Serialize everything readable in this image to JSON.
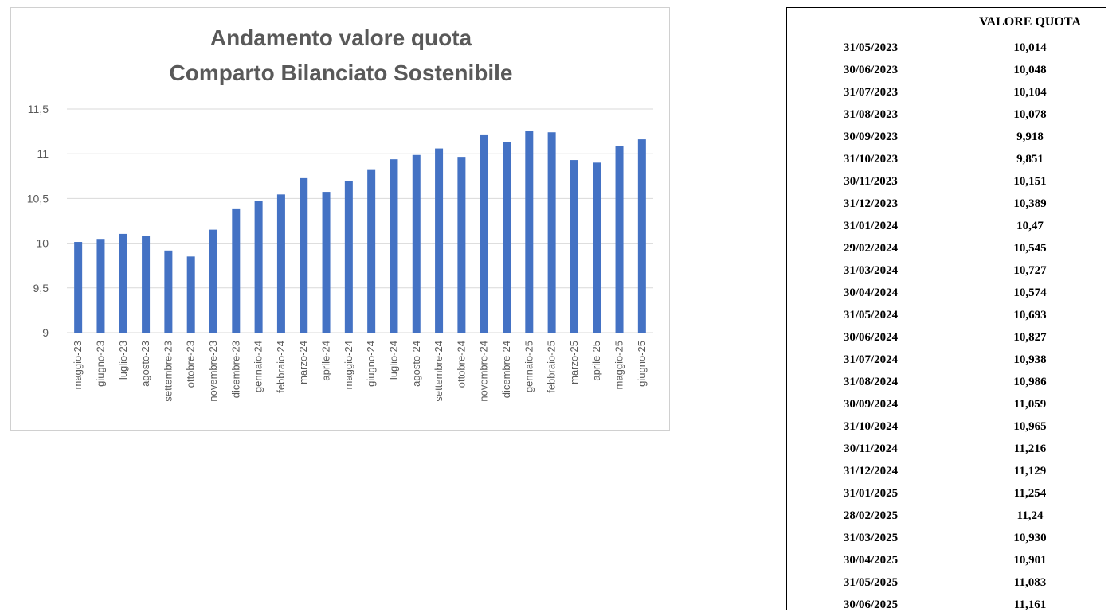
{
  "chart_data": {
    "type": "bar",
    "title": [
      "Andamento valore quota",
      "Comparto Bilanciato Sostenibile"
    ],
    "categories": [
      "maggio-23",
      "giugno-23",
      "luglio-23",
      "agosto-23",
      "settembre-23",
      "ottobre-23",
      "novembre-23",
      "dicembre-23",
      "gennaio-24",
      "febbraio-24",
      "marzo-24",
      "aprile-24",
      "maggio-24",
      "giugno-24",
      "luglio-24",
      "agosto-24",
      "settembre-24",
      "ottobre-24",
      "novembre-24",
      "dicembre-24",
      "gennaio-25",
      "febbraio-25",
      "marzo-25",
      "aprile-25",
      "maggio-25",
      "giugno-25"
    ],
    "values": [
      10.014,
      10.048,
      10.104,
      10.078,
      9.918,
      9.851,
      10.151,
      10.389,
      10.47,
      10.545,
      10.727,
      10.574,
      10.693,
      10.827,
      10.938,
      10.986,
      11.059,
      10.965,
      11.216,
      11.129,
      11.254,
      11.24,
      10.93,
      10.901,
      11.083,
      11.161
    ],
    "ylim": [
      9,
      11.5
    ],
    "yticks": [
      "9",
      "9,5",
      "10",
      "10,5",
      "11",
      "11,5"
    ],
    "grid": true,
    "legend": "none",
    "bar_color": "#4472c4",
    "grid_color": "#d9d9d9"
  },
  "table": {
    "header_date": "",
    "header_value": "VALORE QUOTA",
    "rows": [
      {
        "date": "31/05/2023",
        "value": "10,014"
      },
      {
        "date": "30/06/2023",
        "value": "10,048"
      },
      {
        "date": "31/07/2023",
        "value": "10,104"
      },
      {
        "date": "31/08/2023",
        "value": "10,078"
      },
      {
        "date": "30/09/2023",
        "value": "9,918"
      },
      {
        "date": "31/10/2023",
        "value": "9,851"
      },
      {
        "date": "30/11/2023",
        "value": "10,151"
      },
      {
        "date": "31/12/2023",
        "value": "10,389"
      },
      {
        "date": "31/01/2024",
        "value": "10,47"
      },
      {
        "date": "29/02/2024",
        "value": "10,545"
      },
      {
        "date": "31/03/2024",
        "value": "10,727"
      },
      {
        "date": "30/04/2024",
        "value": "10,574"
      },
      {
        "date": "31/05/2024",
        "value": "10,693"
      },
      {
        "date": "30/06/2024",
        "value": "10,827"
      },
      {
        "date": "31/07/2024",
        "value": "10,938"
      },
      {
        "date": "31/08/2024",
        "value": "10,986"
      },
      {
        "date": "30/09/2024",
        "value": "11,059"
      },
      {
        "date": "31/10/2024",
        "value": "10,965"
      },
      {
        "date": "30/11/2024",
        "value": "11,216"
      },
      {
        "date": "31/12/2024",
        "value": "11,129"
      },
      {
        "date": "31/01/2025",
        "value": "11,254"
      },
      {
        "date": "28/02/2025",
        "value": "11,24"
      },
      {
        "date": "31/03/2025",
        "value": "10,930"
      },
      {
        "date": "30/04/2025",
        "value": "10,901"
      },
      {
        "date": "31/05/2025",
        "value": "11,083"
      },
      {
        "date": "30/06/2025",
        "value": "11,161"
      }
    ]
  }
}
